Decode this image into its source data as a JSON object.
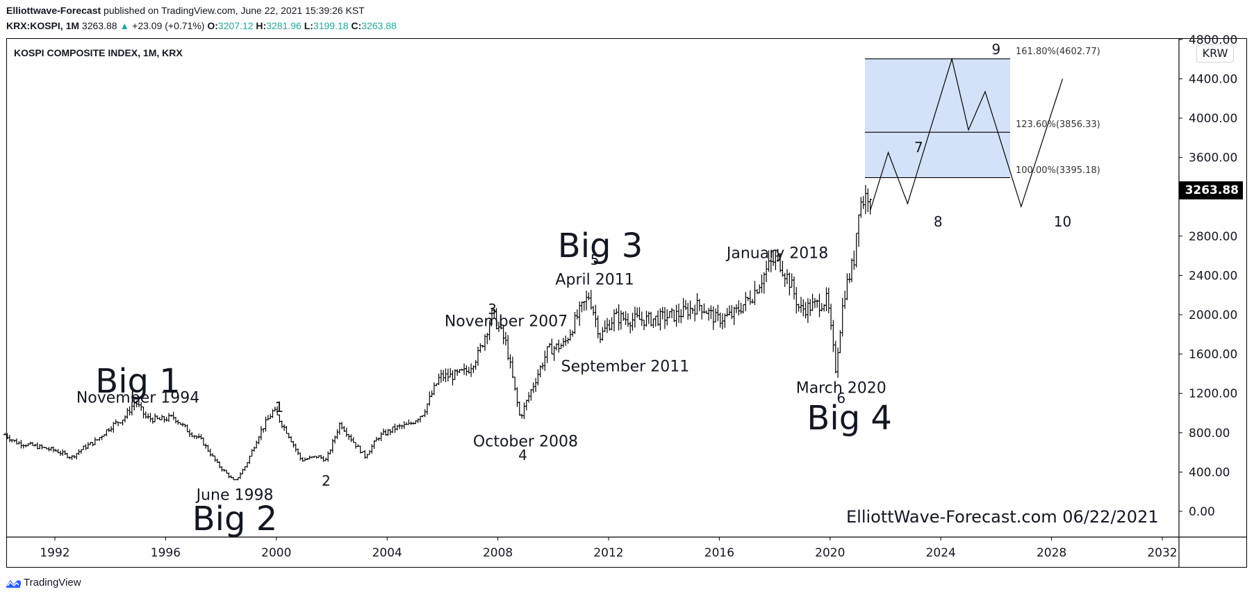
{
  "header": {
    "publisher": "Elliottwave-Forecast",
    "published_text": " published on TradingView.com, June 22, 2021 15:39:26 KST",
    "symbol": "KRX:KOSPI, 1M",
    "last_price": "3263.88",
    "change_arrow": "▲",
    "change": "+23.09 (+0.71%)",
    "open_label": "O:",
    "open": "3207.12",
    "high_label": "H:",
    "high": "3281.96",
    "low_label": "L:",
    "low": "3199.18",
    "close_label": "C:",
    "close": "3263.88"
  },
  "plot": {
    "title": "KOSPI COMPOSITE INDEX, 1M, KRX",
    "currency": "KRW",
    "price_badge": "3263.88",
    "watermark": "ElliottWave-Forecast.com 06/22/2021",
    "brand": "TradingView"
  },
  "colors": {
    "up": "#26a69a",
    "bar": "#000000",
    "fib_box": "#d3e2f8",
    "tv_logo": "#2962ff"
  },
  "chart_data": {
    "type": "ohlc",
    "title": "KOSPI COMPOSITE INDEX, 1M, KRX",
    "xlabel": "",
    "ylabel": "KRW",
    "ylim": [
      0,
      4800
    ],
    "y_ticks": [
      0,
      400,
      800,
      1200,
      1600,
      2000,
      2400,
      2800,
      3200,
      3600,
      4000,
      4400,
      4800
    ],
    "y_tick_labels": [
      "0.00",
      "400.00",
      "800.00",
      "1200.00",
      "1600.00",
      "2000.00",
      "2400.00",
      "2800.00",
      "3200.00",
      "3600.00",
      "4000.00",
      "4400.00",
      "4800.00"
    ],
    "x_ticks": [
      "1992",
      "1996",
      "2000",
      "2004",
      "2008",
      "2012",
      "2016",
      "2020",
      "2024",
      "2028",
      "2032"
    ],
    "grid": false,
    "price_path": [
      [
        1990.2,
        780
      ],
      [
        1990.6,
        700
      ],
      [
        1991.0,
        680
      ],
      [
        1991.5,
        650
      ],
      [
        1992.0,
        620
      ],
      [
        1992.6,
        550
      ],
      [
        1993.0,
        640
      ],
      [
        1993.5,
        720
      ],
      [
        1994.0,
        860
      ],
      [
        1994.5,
        950
      ],
      [
        1994.9,
        1120
      ],
      [
        1995.3,
        950
      ],
      [
        1995.8,
        930
      ],
      [
        1996.3,
        960
      ],
      [
        1996.8,
        820
      ],
      [
        1997.3,
        720
      ],
      [
        1997.9,
        470
      ],
      [
        1998.5,
        300
      ],
      [
        1998.9,
        470
      ],
      [
        1999.4,
        800
      ],
      [
        1999.9,
        1030
      ],
      [
        2000.4,
        800
      ],
      [
        2000.9,
        520
      ],
      [
        2001.5,
        560
      ],
      [
        2001.8,
        520
      ],
      [
        2002.3,
        900
      ],
      [
        2002.8,
        700
      ],
      [
        2003.2,
        560
      ],
      [
        2003.7,
        760
      ],
      [
        2004.3,
        850
      ],
      [
        2004.8,
        880
      ],
      [
        2005.3,
        1000
      ],
      [
        2005.9,
        1370
      ],
      [
        2006.4,
        1380
      ],
      [
        2006.9,
        1430
      ],
      [
        2007.3,
        1600
      ],
      [
        2007.8,
        2010
      ],
      [
        2008.3,
        1700
      ],
      [
        2008.8,
        950
      ],
      [
        2009.3,
        1300
      ],
      [
        2009.8,
        1640
      ],
      [
        2010.4,
        1700
      ],
      [
        2010.9,
        2000
      ],
      [
        2011.3,
        2200
      ],
      [
        2011.7,
        1780
      ],
      [
        2012.2,
        1980
      ],
      [
        2012.8,
        1950
      ],
      [
        2013.5,
        1950
      ],
      [
        2014.5,
        2000
      ],
      [
        2015.3,
        2100
      ],
      [
        2015.9,
        1950
      ],
      [
        2016.5,
        2000
      ],
      [
        2017.2,
        2200
      ],
      [
        2017.8,
        2500
      ],
      [
        2018.1,
        2580
      ],
      [
        2018.6,
        2300
      ],
      [
        2018.9,
        2050
      ],
      [
        2019.5,
        2100
      ],
      [
        2019.9,
        2150
      ],
      [
        2020.2,
        1450
      ],
      [
        2020.5,
        2200
      ],
      [
        2020.9,
        2600
      ],
      [
        2021.0,
        3100
      ],
      [
        2021.45,
        3264
      ]
    ],
    "annotations": [
      {
        "text": "Big 1",
        "x": 1995.0,
        "y": 1320
      },
      {
        "text": "November 1994",
        "x": 1995.0,
        "y": 1150
      },
      {
        "text": "Big 2",
        "x": 1998.5,
        "y": -80
      },
      {
        "text": "June 1998",
        "x": 1998.5,
        "y": 160
      },
      {
        "text": "1",
        "x": 2000.1,
        "y": 1060
      },
      {
        "text": "2",
        "x": 2001.8,
        "y": 310
      },
      {
        "text": "3",
        "x": 2007.8,
        "y": 2060
      },
      {
        "text": "November 2007",
        "x": 2008.3,
        "y": 1930
      },
      {
        "text": "October 2008",
        "x": 2009.0,
        "y": 710
      },
      {
        "text": "4",
        "x": 2008.9,
        "y": 570
      },
      {
        "text": "Big 3",
        "x": 2011.7,
        "y": 2700
      },
      {
        "text": "5",
        "x": 2011.5,
        "y": 2560
      },
      {
        "text": "April 2011",
        "x": 2011.5,
        "y": 2350
      },
      {
        "text": "September 2011",
        "x": 2012.6,
        "y": 1470
      },
      {
        "text": "January 2018",
        "x": 2018.1,
        "y": 2620
      },
      {
        "text": "March 2020",
        "x": 2020.4,
        "y": 1250
      },
      {
        "text": "6",
        "x": 2020.4,
        "y": 1150
      },
      {
        "text": "Big 4",
        "x": 2020.7,
        "y": 950
      },
      {
        "text": "7",
        "x": 2023.2,
        "y": 3700
      },
      {
        "text": "8",
        "x": 2023.9,
        "y": 2950
      },
      {
        "text": "9",
        "x": 2026.0,
        "y": 4700
      },
      {
        "text": "10",
        "x": 2028.4,
        "y": 2950
      }
    ],
    "projection_path": [
      [
        2021.45,
        3060
      ],
      [
        2022.1,
        3650
      ],
      [
        2022.8,
        3130
      ],
      [
        2024.4,
        4602
      ],
      [
        2025.0,
        3880
      ],
      [
        2025.6,
        4270
      ],
      [
        2026.9,
        3100
      ],
      [
        2028.4,
        4400
      ]
    ],
    "fibonacci": {
      "x_start": 2021.45,
      "x_end": 2026.7,
      "levels": [
        {
          "ratio": "161.80%",
          "value": 4602.77,
          "label": "161.80%(4602.77)"
        },
        {
          "ratio": "123.60%",
          "value": 3856.33,
          "label": "123.60%(3856.33)"
        },
        {
          "ratio": "100.00%",
          "value": 3395.18,
          "label": "100.00%(3395.18)"
        }
      ]
    }
  }
}
